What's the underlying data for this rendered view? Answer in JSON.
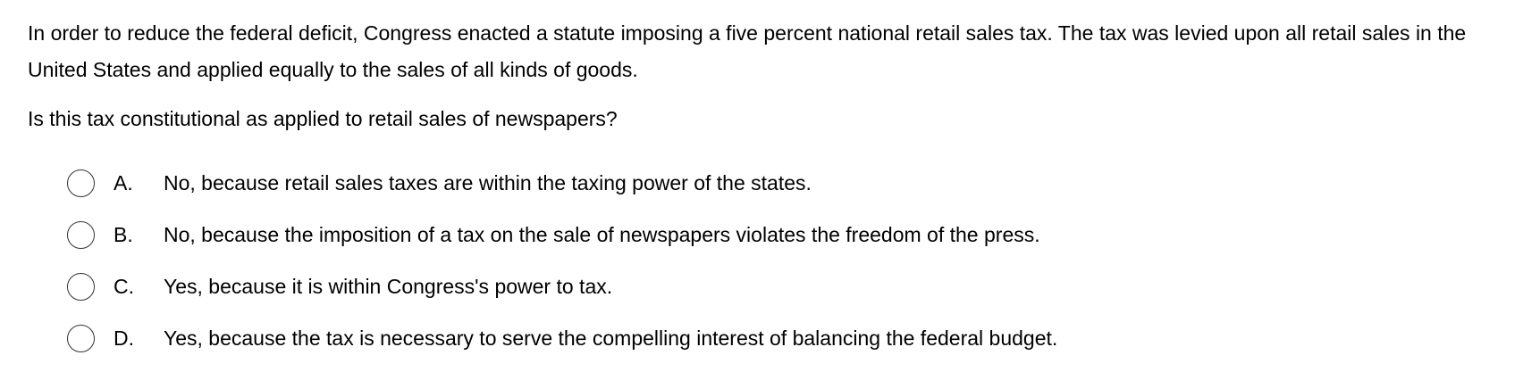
{
  "question": {
    "stem": "In order to reduce the federal deficit, Congress enacted a statute imposing a five percent national retail sales tax. The tax was levied upon all retail sales in the United States and applied equally to the sales of all kinds of goods.",
    "prompt": "Is this tax constitutional as applied to retail sales of newspapers?"
  },
  "options": [
    {
      "letter": "A.",
      "text": "No, because retail sales taxes are within the taxing power of the states."
    },
    {
      "letter": "B.",
      "text": "No, because the imposition of a tax on the sale of newspapers violates the freedom of the press."
    },
    {
      "letter": "C.",
      "text": "Yes, because it is within Congress's power to tax."
    },
    {
      "letter": "D.",
      "text": "Yes, because the tax is necessary to serve the compelling interest of balancing the federal budget."
    }
  ],
  "colors": {
    "text": "#000000",
    "radio_border": "#333333",
    "background": "#ffffff"
  },
  "icons": {
    "radio": "radio-unselected-icon"
  }
}
